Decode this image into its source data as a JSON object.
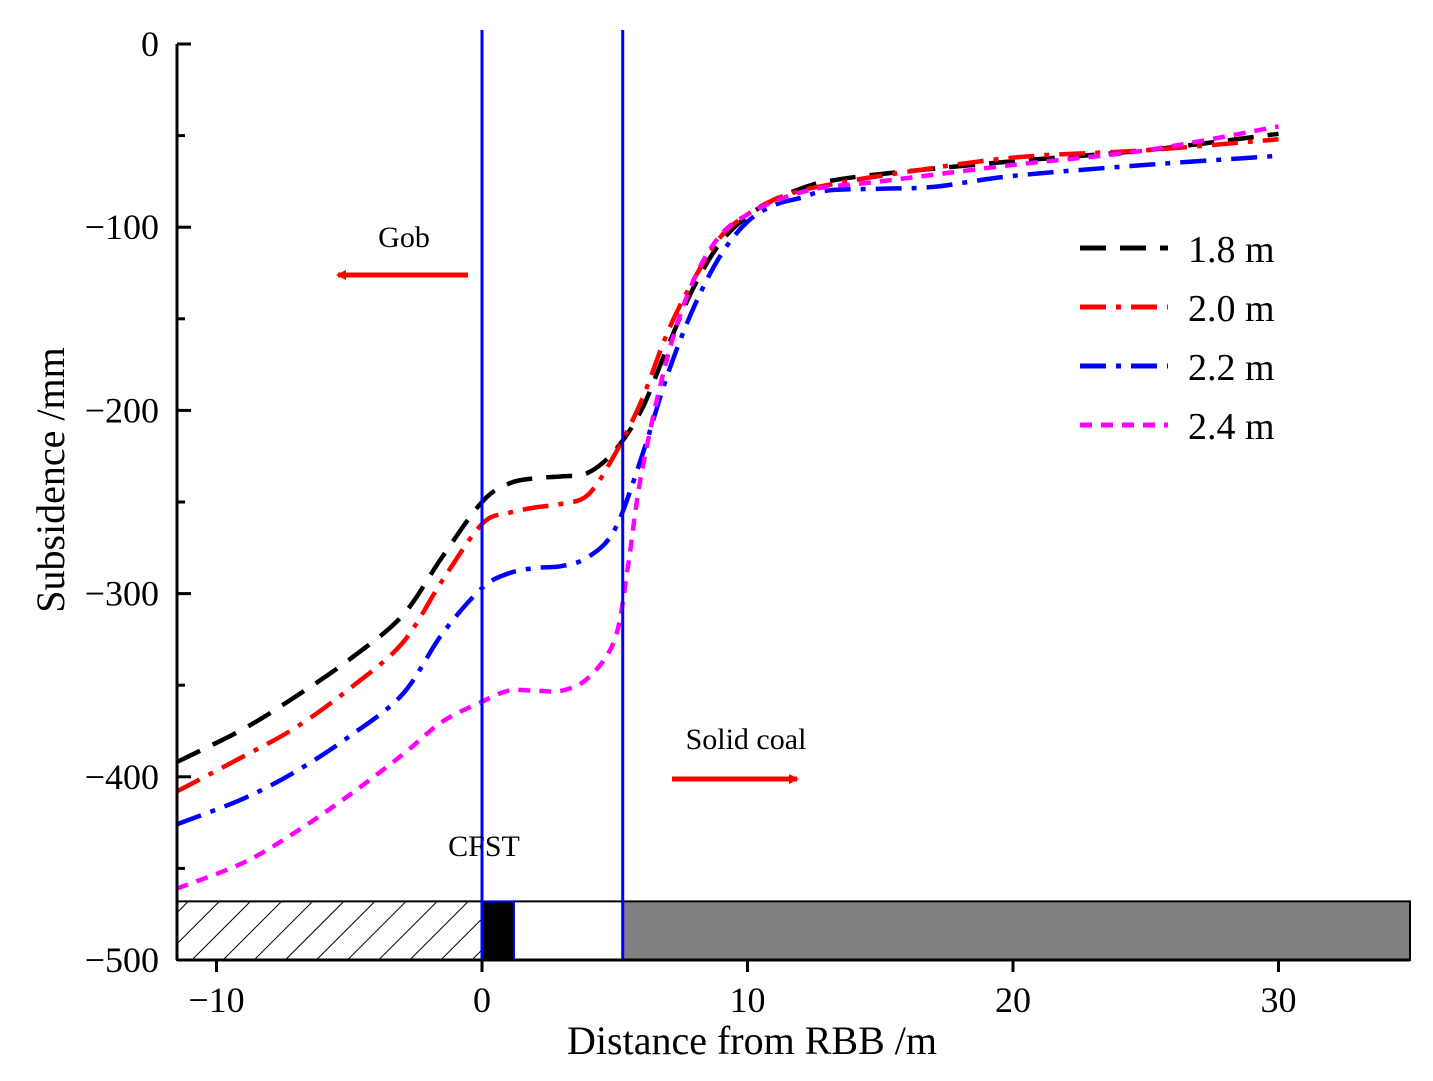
{
  "chart_data": {
    "type": "line",
    "title": "",
    "xlabel": "Distance from RBB /m",
    "ylabel": "Subsidence /mm",
    "xlim": [
      -11.5,
      35
    ],
    "ylim": [
      -500,
      0
    ],
    "x_ticks": [
      -10,
      0,
      10,
      20,
      30
    ],
    "x_tick_labels": [
      "−10",
      "0",
      "10",
      "20",
      "30"
    ],
    "y_ticks": [
      0,
      -100,
      -200,
      -300,
      -400,
      -500
    ],
    "y_tick_labels": [
      "0",
      "−100",
      "−200",
      "−300",
      "−400",
      "−500"
    ],
    "legend_position": "top-right",
    "series": [
      {
        "name": "1.8 m",
        "color": "#000000",
        "style": "dashed",
        "points": [
          [
            -11.5,
            -392
          ],
          [
            -9,
            -374
          ],
          [
            -7,
            -356
          ],
          [
            -5,
            -336
          ],
          [
            -3,
            -312
          ],
          [
            -1.5,
            -280
          ],
          [
            0,
            -250
          ],
          [
            1,
            -240
          ],
          [
            2,
            -237
          ],
          [
            3,
            -236
          ],
          [
            4,
            -234
          ],
          [
            5,
            -222
          ],
          [
            6,
            -200
          ],
          [
            7,
            -165
          ],
          [
            8,
            -132
          ],
          [
            9,
            -108
          ],
          [
            10,
            -94
          ],
          [
            11,
            -85
          ],
          [
            12,
            -79
          ],
          [
            13,
            -75
          ],
          [
            15,
            -71
          ],
          [
            20,
            -64
          ],
          [
            25,
            -58
          ],
          [
            30,
            -49
          ]
        ]
      },
      {
        "name": "2.0 m",
        "color": "#ff0000",
        "style": "dashdot",
        "points": [
          [
            -11.5,
            -408
          ],
          [
            -9,
            -389
          ],
          [
            -7,
            -373
          ],
          [
            -5,
            -352
          ],
          [
            -3,
            -327
          ],
          [
            -1.5,
            -293
          ],
          [
            0,
            -262
          ],
          [
            1,
            -256
          ],
          [
            2,
            -253
          ],
          [
            3,
            -251
          ],
          [
            4,
            -246
          ],
          [
            5,
            -224
          ],
          [
            6,
            -195
          ],
          [
            7,
            -157
          ],
          [
            8,
            -128
          ],
          [
            9,
            -105
          ],
          [
            10,
            -93
          ],
          [
            11,
            -85
          ],
          [
            12,
            -80
          ],
          [
            13,
            -77
          ],
          [
            15,
            -72
          ],
          [
            20,
            -62
          ],
          [
            25,
            -58
          ],
          [
            30,
            -52
          ]
        ]
      },
      {
        "name": "2.2 m",
        "color": "#0000ff",
        "style": "dashdot",
        "points": [
          [
            -11.5,
            -426
          ],
          [
            -9,
            -412
          ],
          [
            -7,
            -397
          ],
          [
            -5,
            -378
          ],
          [
            -3,
            -355
          ],
          [
            -1.5,
            -322
          ],
          [
            0,
            -297
          ],
          [
            1,
            -289
          ],
          [
            2,
            -286
          ],
          [
            3,
            -285
          ],
          [
            4,
            -280
          ],
          [
            5,
            -265
          ],
          [
            6,
            -226
          ],
          [
            7,
            -180
          ],
          [
            8,
            -143
          ],
          [
            9,
            -115
          ],
          [
            10,
            -97
          ],
          [
            11,
            -88
          ],
          [
            12,
            -84
          ],
          [
            13,
            -80
          ],
          [
            15,
            -79
          ],
          [
            17,
            -78
          ],
          [
            20,
            -72
          ],
          [
            25,
            -66
          ],
          [
            30,
            -61
          ]
        ]
      },
      {
        "name": "2.4 m",
        "color": "#ff00ff",
        "style": "dotted",
        "points": [
          [
            -11.5,
            -461
          ],
          [
            -9,
            -447
          ],
          [
            -7,
            -430
          ],
          [
            -5,
            -410
          ],
          [
            -3,
            -388
          ],
          [
            -1.5,
            -370
          ],
          [
            0,
            -359
          ],
          [
            1,
            -353
          ],
          [
            2,
            -353
          ],
          [
            3,
            -353
          ],
          [
            4,
            -346
          ],
          [
            5,
            -325
          ],
          [
            5.5,
            -285
          ],
          [
            6,
            -235
          ],
          [
            7,
            -170
          ],
          [
            8,
            -128
          ],
          [
            9,
            -104
          ],
          [
            10,
            -93
          ],
          [
            11,
            -86
          ],
          [
            12,
            -81
          ],
          [
            13,
            -78
          ],
          [
            15,
            -75
          ],
          [
            20,
            -66
          ],
          [
            25,
            -58
          ],
          [
            30,
            -45
          ]
        ]
      }
    ],
    "vertical_lines": [
      {
        "x": 0,
        "color": "#0000ff"
      },
      {
        "x": 5.3,
        "color": "#0000ff"
      }
    ],
    "strata": {
      "y_top": -468,
      "y_bottom": -500,
      "gob": {
        "x_start": -11.5,
        "x_end": 0
      },
      "cfst": {
        "x_start": 0,
        "x_end": 1.2,
        "color": "#000000"
      },
      "roadway": {
        "x_start": 1.2,
        "x_end": 5.3,
        "color": "#ffffff"
      },
      "solid_coal": {
        "x_start": 5.3,
        "x_end": 35,
        "color": "#808080"
      }
    },
    "annotations": {
      "gob": {
        "text": "Gob",
        "direction": "left",
        "arrow_color": "#ff0000"
      },
      "solid_coal": {
        "text": "Solid coal",
        "direction": "right",
        "arrow_color": "#ff0000"
      },
      "cfst": {
        "text": "CFST"
      }
    }
  }
}
